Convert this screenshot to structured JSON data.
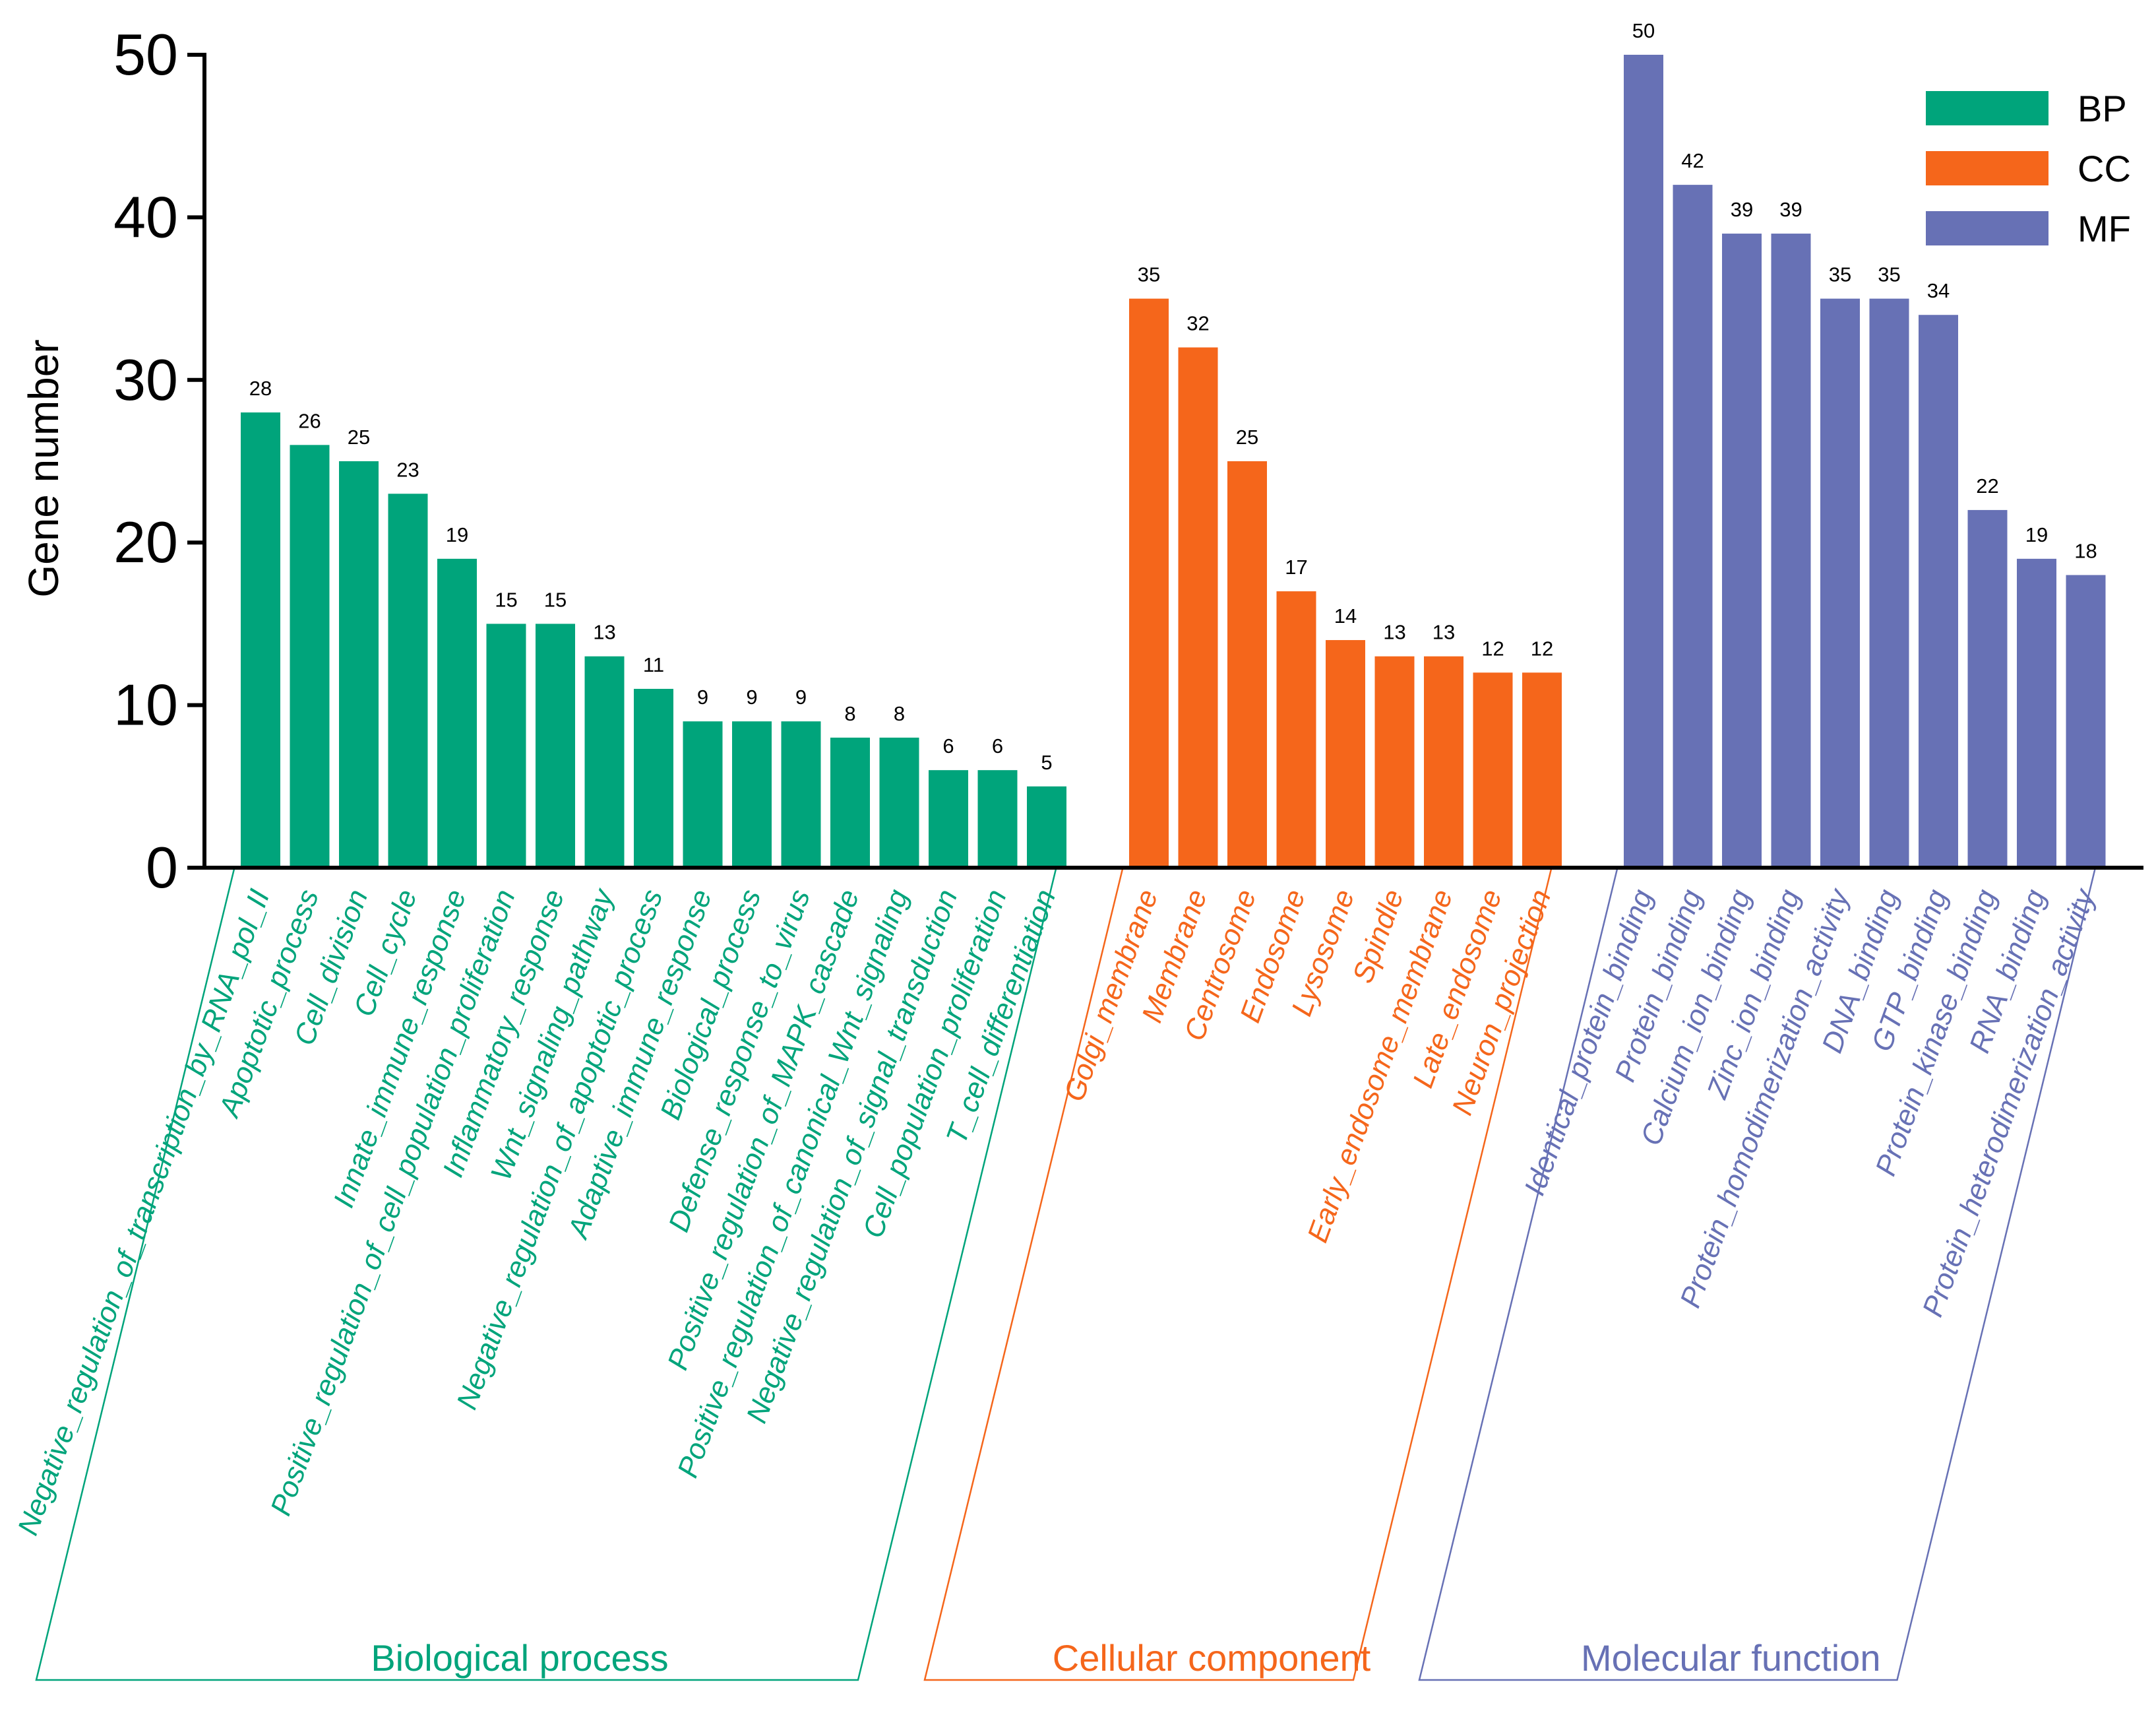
{
  "chart_data": {
    "type": "bar",
    "ylabel": "Gene number",
    "ylim": [
      0,
      50
    ],
    "yticks": [
      "0",
      "10",
      "20",
      "30",
      "40",
      "50"
    ],
    "series": [
      {
        "key": "BP",
        "name": "Biological process",
        "color": "#00a47b",
        "categories": [
          "Negative_regulation_of_transcription_by_RNA_pol_II",
          "Apoptotic_process",
          "Cell_division",
          "Cell_cycle",
          "Innate_immune_response",
          "Positive_regulation_of_cell_population_proliferation",
          "Inflammatory_response",
          "Wnt_signaling_pathway",
          "Negative_regulation_of_apoptotic_process",
          "Adaptive_immune_response",
          "Biological_process",
          "Defense_response_to_virus",
          "Positive_regulation_of_MAPK_cascade",
          "Positive_regulation_of_canonical_Wnt_signaling",
          "Negative_regulation_of_signal_transduction",
          "Cell_population_proliferation",
          "T_cell_differentiation"
        ],
        "values": [
          28,
          26,
          25,
          23,
          19,
          15,
          15,
          13,
          11,
          9,
          9,
          9,
          8,
          8,
          6,
          6,
          5
        ]
      },
      {
        "key": "CC",
        "name": "Cellular component",
        "color": "#f5661b",
        "categories": [
          "Golgi_membrane",
          "Membrane",
          "Centrosome",
          "Endosome",
          "Lysosome",
          "Spindle",
          "Early_endosome_membrane",
          "Late_endosome",
          "Neuron_projection"
        ],
        "values": [
          35,
          32,
          25,
          17,
          14,
          13,
          13,
          12,
          12
        ]
      },
      {
        "key": "MF",
        "name": "Molecular function",
        "color": "#6771b5",
        "categories": [
          "Identical_protein_binding",
          "Protein_binding",
          "Calcium_ion_binding",
          "Zinc_ion_binding",
          "Protein_homodimerization_activity",
          "DNA_binding",
          "GTP_binding",
          "Protein_kinase_binding",
          "RNA_binding",
          "Protein_heterodimerization_activity"
        ],
        "values": [
          50,
          42,
          39,
          39,
          35,
          35,
          34,
          22,
          19,
          18
        ]
      }
    ],
    "legend": {
      "position": "top-right",
      "entries": [
        "BP",
        "CC",
        "MF"
      ]
    }
  }
}
